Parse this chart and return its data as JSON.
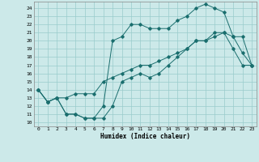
{
  "xlabel": "Humidex (Indice chaleur)",
  "xlim": [
    -0.5,
    23.5
  ],
  "ylim": [
    9.5,
    24.8
  ],
  "yticks": [
    10,
    11,
    12,
    13,
    14,
    15,
    16,
    17,
    18,
    19,
    20,
    21,
    22,
    23,
    24
  ],
  "xticks": [
    0,
    1,
    2,
    3,
    4,
    5,
    6,
    7,
    8,
    9,
    10,
    11,
    12,
    13,
    14,
    15,
    16,
    17,
    18,
    19,
    20,
    21,
    22,
    23
  ],
  "bg_color": "#cce9e9",
  "grid_color": "#99cccc",
  "line_color": "#1a6e6e",
  "line1_y": [
    14,
    12.5,
    13,
    11,
    11,
    10.5,
    10.5,
    10.5,
    12,
    15,
    15.5,
    16,
    15.5,
    16,
    17,
    18,
    19,
    20,
    20,
    21,
    21,
    19,
    17,
    17
  ],
  "line2_y": [
    14,
    12.5,
    13,
    11,
    11,
    10.5,
    10.5,
    12,
    20,
    20.5,
    22,
    22,
    21.5,
    21.5,
    21.5,
    22.5,
    23,
    24,
    24.5,
    24,
    23.5,
    20.5,
    18.5,
    17
  ],
  "line3_y": [
    14,
    12.5,
    13,
    13,
    13.5,
    13.5,
    13.5,
    15,
    15.5,
    16,
    16.5,
    17,
    17,
    17.5,
    18,
    18.5,
    19,
    20,
    20,
    20.5,
    21,
    20.5,
    20.5,
    17
  ]
}
